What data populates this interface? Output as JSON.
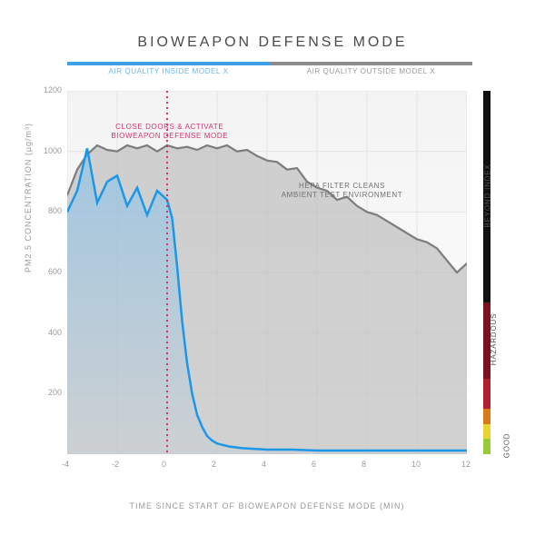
{
  "title": "BIOWEAPON DEFENSE MODE",
  "legend": {
    "inside": {
      "label": "AIR QUALITY INSIDE MODEL X",
      "color": "#3fa0e8",
      "text_color": "#6bb5ea"
    },
    "outside": {
      "label": "AIR QUALITY OUTSIDE MODEL X",
      "color": "#8c8c8c",
      "text_color": "#9a9a9a"
    }
  },
  "axes": {
    "xlabel": "TIME SINCE START OF BIOWEAPON DEFENSE MODE (MIN)",
    "ylabel": "PM2.5 CONCENTRATION (µg/m³)",
    "xlim": [
      -4,
      12
    ],
    "ylim": [
      0,
      1200
    ],
    "xtick_step": 2,
    "ytick_step": 200,
    "grid_color": "#e4e4e4",
    "background_top": "#f3f3f3",
    "background_bottom": "#ffffff",
    "axis_fontsize": 9,
    "label_color": "#9a9a9a"
  },
  "series": {
    "outside": {
      "color_line": "#7d7d7d",
      "color_fill": "#c2c2c2",
      "fill_opacity": 0.75,
      "linewidth": 2.2,
      "x": [
        -4,
        -3.6,
        -3.2,
        -2.8,
        -2.4,
        -2,
        -1.6,
        -1.2,
        -0.8,
        -0.4,
        0,
        0.4,
        0.8,
        1.2,
        1.6,
        2,
        2.4,
        2.8,
        3.2,
        3.6,
        4,
        4.4,
        4.8,
        5.2,
        5.6,
        6,
        6.4,
        6.8,
        7.2,
        7.6,
        8,
        8.4,
        8.8,
        9.2,
        9.6,
        10,
        10.4,
        10.8,
        11.2,
        11.6,
        12
      ],
      "y": [
        855,
        940,
        990,
        1020,
        1005,
        1000,
        1020,
        1010,
        1020,
        1000,
        1020,
        1010,
        1015,
        1005,
        1020,
        1010,
        1020,
        1000,
        1005,
        985,
        970,
        965,
        940,
        945,
        900,
        880,
        870,
        840,
        850,
        820,
        800,
        790,
        770,
        750,
        730,
        710,
        700,
        680,
        640,
        600,
        630
      ]
    },
    "inside": {
      "color_line": "#1c97e8",
      "color_fill": "#7cc1f0",
      "fill_opacity": 0.55,
      "linewidth": 2.5,
      "x": [
        -4,
        -3.6,
        -3.2,
        -2.8,
        -2.4,
        -2,
        -1.6,
        -1.2,
        -0.8,
        -0.4,
        0,
        0.2,
        0.4,
        0.6,
        0.8,
        1,
        1.2,
        1.4,
        1.6,
        1.8,
        2,
        2.5,
        3,
        4,
        5,
        6,
        8,
        10,
        12
      ],
      "y": [
        800,
        870,
        1010,
        830,
        900,
        920,
        820,
        880,
        790,
        870,
        840,
        780,
        620,
        440,
        300,
        200,
        130,
        90,
        60,
        45,
        35,
        25,
        20,
        15,
        15,
        12,
        12,
        12,
        12
      ]
    }
  },
  "event_line": {
    "x": 0,
    "color": "#d6336c",
    "dash": "2,4",
    "width": 2
  },
  "annotations": {
    "close_doors": {
      "text_l1": "CLOSE DOORS & ACTIVATE",
      "text_l2": "BIOWEAPON DEFENSE MODE",
      "color": "#d6336c",
      "x_center_min": 0.1,
      "y_value": 1095
    },
    "hepa": {
      "text_l1": "HEPA FILTER CLEANS",
      "text_l2": "AMBIENT TEST ENVIRONMENT",
      "color": "#6f6f6f",
      "x_center_min": 7,
      "y_value": 900
    }
  },
  "aqi_scale": {
    "segments": [
      {
        "label": "BEYOND INDEX",
        "from": 500,
        "to": 1200,
        "color": "#111111"
      },
      {
        "label": "HAZARDOUS",
        "from": 250,
        "to": 500,
        "color": "#7a1024"
      },
      {
        "label": "",
        "from": 150,
        "to": 250,
        "color": "#b3202c"
      },
      {
        "label": "",
        "from": 100,
        "to": 150,
        "color": "#d97a1a"
      },
      {
        "label": "",
        "from": 50,
        "to": 100,
        "color": "#e8d531"
      },
      {
        "label": "GOOD",
        "from": 0,
        "to": 50,
        "color": "#9ac93a"
      }
    ]
  }
}
